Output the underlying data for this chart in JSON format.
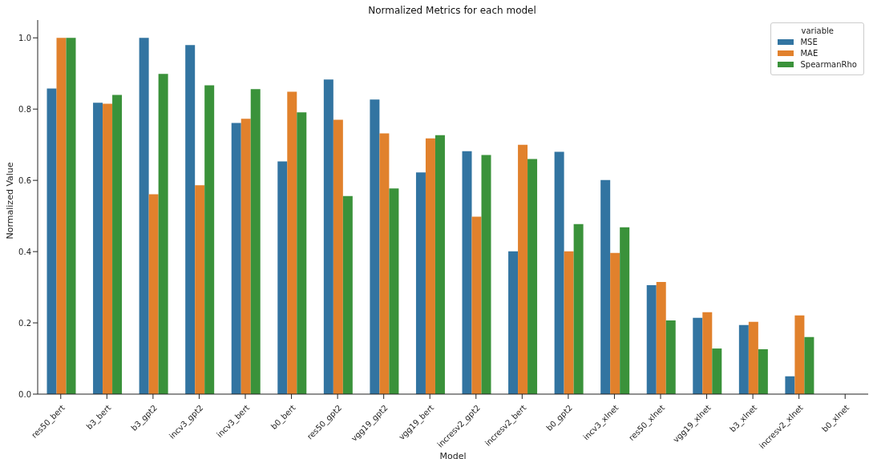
{
  "chart_data": {
    "type": "bar",
    "title": "Normalized Metrics for each model",
    "xlabel": "Model",
    "ylabel": "Normalized Value",
    "legend_title": "variable",
    "legend": "top right",
    "grid": false,
    "categories": [
      "res50_bert",
      "b3_bert",
      "b3_gpt2",
      "incv3_gpt2",
      "incv3_bert",
      "b0_bert",
      "res50_gpt2",
      "vgg19_gpt2",
      "vgg19_bert",
      "incresv2_gpt2",
      "incresv2_bert",
      "b0_gpt2",
      "incv3_xlnet",
      "res50_xlnet",
      "vgg19_xlnet",
      "b3_xlnet",
      "incresv2_xlnet",
      "b0_xlnet"
    ],
    "series": [
      {
        "name": "MSE",
        "color": "#3274a1",
        "values": [
          0.858,
          0.818,
          1.0,
          0.98,
          0.761,
          0.653,
          0.883,
          0.827,
          0.622,
          0.682,
          0.401,
          0.68,
          0.601,
          0.306,
          0.214,
          0.194,
          0.05,
          0
        ]
      },
      {
        "name": "MAE",
        "color": "#e1812c",
        "values": [
          1.0,
          0.815,
          0.561,
          0.586,
          0.773,
          0.849,
          0.77,
          0.732,
          0.718,
          0.498,
          0.7,
          0.401,
          0.396,
          0.315,
          0.23,
          0.203,
          0.221,
          0
        ]
      },
      {
        "name": "SpearmanRho",
        "color": "#3a923a",
        "values": [
          1.0,
          0.84,
          0.899,
          0.867,
          0.856,
          0.791,
          0.556,
          0.577,
          0.727,
          0.671,
          0.66,
          0.477,
          0.468,
          0.207,
          0.128,
          0.126,
          0.16,
          0
        ]
      }
    ],
    "ylim": [
      0,
      1.05
    ],
    "yticks": [
      {
        "value": 0,
        "label": "0.0"
      },
      {
        "value": 0.2,
        "label": "0.2"
      },
      {
        "value": 0.4,
        "label": "0.4"
      },
      {
        "value": 0.6,
        "label": "0.6"
      },
      {
        "value": 0.8,
        "label": "0.8"
      },
      {
        "value": 1.0,
        "label": "1.0"
      }
    ]
  }
}
